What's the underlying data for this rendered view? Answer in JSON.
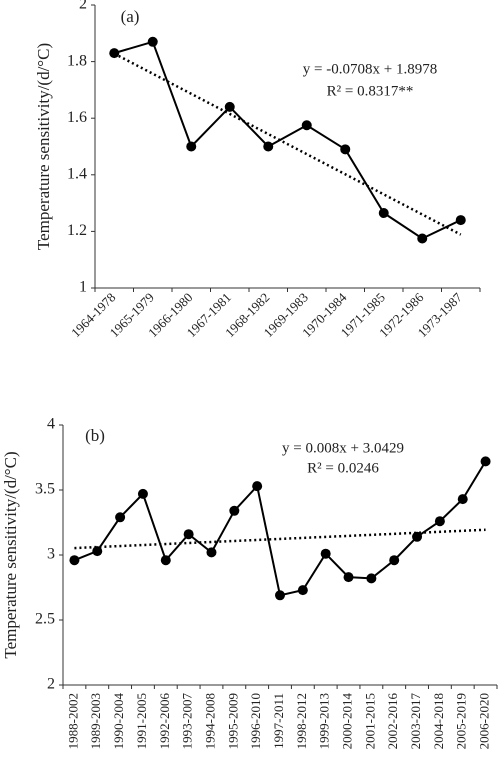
{
  "chart_data": [
    {
      "type": "line",
      "panel_label": "(a)",
      "y_label": "Temperature sensitivity/(d/°C)",
      "annotations": [
        "y = -0.0708x + 1.8978",
        "R² = 0.8317**"
      ],
      "categories": [
        "1964-1978",
        "1965-1979",
        "1966-1980",
        "1967-1981",
        "1968-1982",
        "1969-1983",
        "1970-1984",
        "1971-1985",
        "1972-1986",
        "1973-1987"
      ],
      "values": [
        1.83,
        1.87,
        1.5,
        1.64,
        1.5,
        1.575,
        1.49,
        1.265,
        1.175,
        1.24
      ],
      "color": "#000000",
      "trendline": true,
      "ylim": [
        1,
        2
      ],
      "yticks": [
        1,
        1.2,
        1.4,
        1.6,
        1.8,
        2
      ]
    },
    {
      "type": "line",
      "panel_label": "(b)",
      "y_label": "Temperature sensitivity/(d/°C)",
      "annotations": [
        "y = 0.008x + 3.0429",
        "R² = 0.0246"
      ],
      "categories": [
        "1988-2002",
        "1989-2003",
        "1990-2004",
        "1991-2005",
        "1992-2006",
        "1993-2007",
        "1994-2008",
        "1995-2009",
        "1996-2010",
        "1997-2011",
        "1998-2012",
        "1999-2013",
        "2000-2014",
        "2001-2015",
        "2002-2016",
        "2003-2017",
        "2004-2018",
        "2005-2019",
        "2006-2020"
      ],
      "values": [
        2.96,
        3.03,
        3.29,
        3.47,
        2.96,
        3.16,
        3.02,
        3.34,
        3.53,
        2.69,
        2.73,
        3.01,
        2.83,
        2.82,
        2.96,
        3.14,
        3.26,
        3.43,
        3.72
      ],
      "color": "#000000",
      "trendline": true,
      "ylim": [
        2,
        4
      ],
      "yticks": [
        2,
        2.5,
        3,
        3.5,
        4
      ]
    }
  ]
}
